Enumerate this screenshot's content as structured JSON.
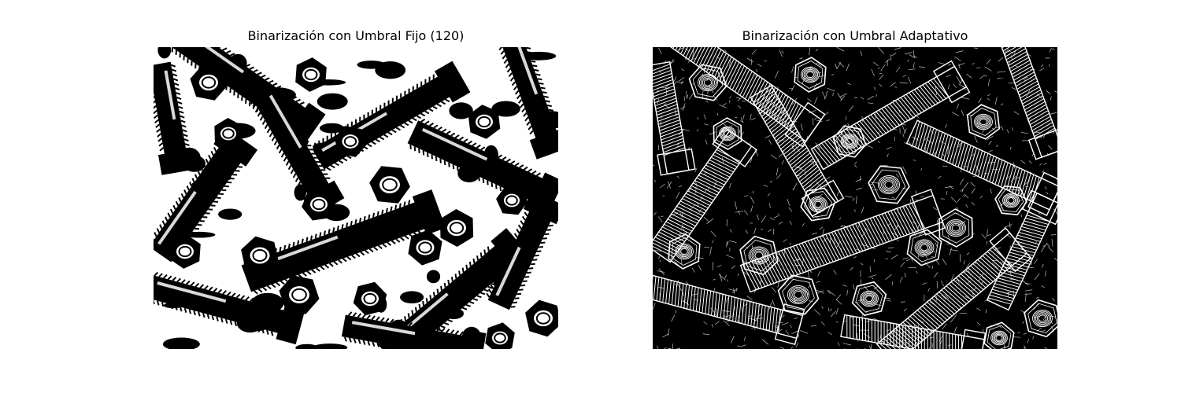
{
  "figure": {
    "panels": [
      {
        "title": "Binarización con Umbral Fijo (120)",
        "image": {
          "description": "black and white thresholded photo of bolts and hex nuts",
          "foreground_color": "#000000",
          "background_color": "#ffffff"
        }
      },
      {
        "title": "Binarización con Umbral Adaptativo",
        "image": {
          "description": "edge-like adaptive threshold of bolts and hex nuts",
          "foreground_color": "#ffffff",
          "background_color": "#000000"
        }
      }
    ]
  }
}
